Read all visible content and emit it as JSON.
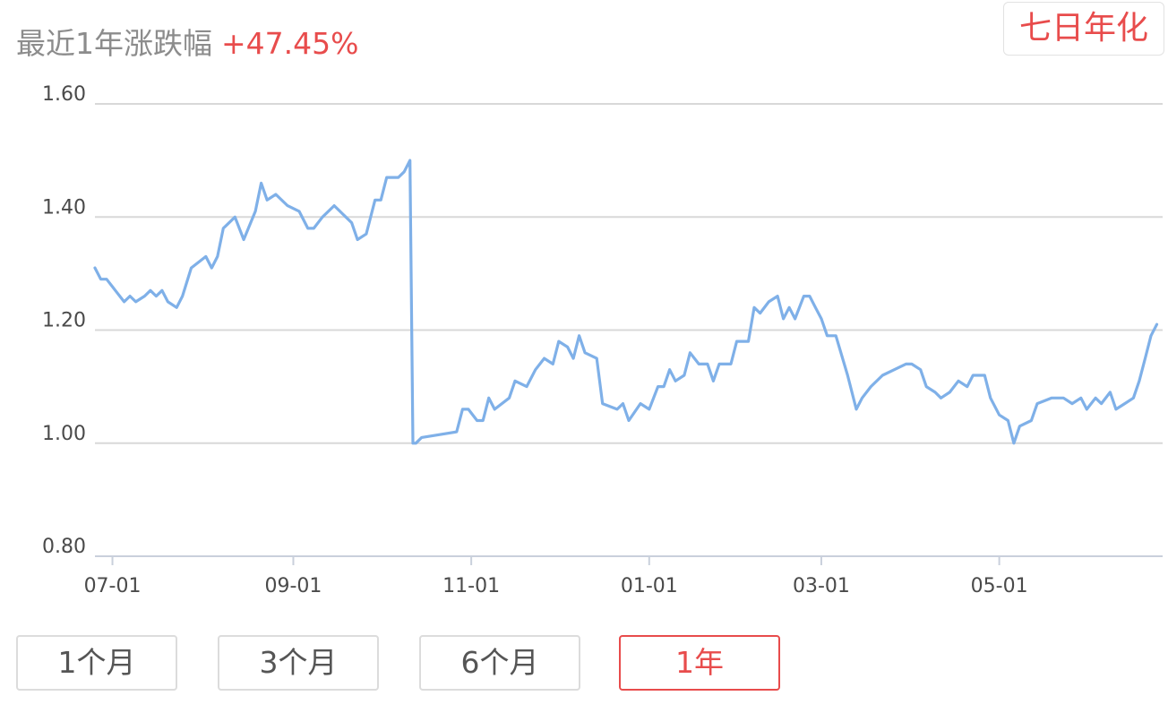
{
  "header": {
    "label": "最近1年涨跌幅",
    "value": "+47.45%"
  },
  "toggle": {
    "label": "七日年化"
  },
  "range_buttons": [
    {
      "label": "1个月",
      "active": false
    },
    {
      "label": "3个月",
      "active": false
    },
    {
      "label": "6个月",
      "active": false
    },
    {
      "label": "1年",
      "active": true
    }
  ],
  "colors": {
    "line": "#7fb0e8",
    "accent": "#e84c4c",
    "grid": "#d8d8d8"
  },
  "chart_data": {
    "type": "line",
    "title": "",
    "xlabel": "",
    "ylabel": "",
    "ylim": [
      0.8,
      1.6
    ],
    "xlim": [
      "2021-06-25",
      "2022-06-26"
    ],
    "y_ticks": [
      "1.60",
      "1.40",
      "1.20",
      "1.00",
      "0.80"
    ],
    "x_ticks": [
      {
        "date": "2021-07-01",
        "label": "07-01"
      },
      {
        "date": "2021-09-01",
        "label": "09-01"
      },
      {
        "date": "2021-11-01",
        "label": "11-01"
      },
      {
        "date": "2022-01-01",
        "label": "01-01"
      },
      {
        "date": "2022-03-01",
        "label": "03-01"
      },
      {
        "date": "2022-05-01",
        "label": "05-01"
      }
    ],
    "grid": true,
    "series": [
      {
        "points": [
          [
            "2021-06-25",
            1.31
          ],
          [
            "2021-06-27",
            1.29
          ],
          [
            "2021-06-29",
            1.29
          ],
          [
            "2021-07-02",
            1.27
          ],
          [
            "2021-07-05",
            1.25
          ],
          [
            "2021-07-07",
            1.26
          ],
          [
            "2021-07-09",
            1.25
          ],
          [
            "2021-07-12",
            1.26
          ],
          [
            "2021-07-14",
            1.27
          ],
          [
            "2021-07-16",
            1.26
          ],
          [
            "2021-07-18",
            1.27
          ],
          [
            "2021-07-20",
            1.25
          ],
          [
            "2021-07-23",
            1.24
          ],
          [
            "2021-07-25",
            1.26
          ],
          [
            "2021-07-28",
            1.31
          ],
          [
            "2021-08-02",
            1.33
          ],
          [
            "2021-08-04",
            1.31
          ],
          [
            "2021-08-06",
            1.33
          ],
          [
            "2021-08-08",
            1.38
          ],
          [
            "2021-08-12",
            1.4
          ],
          [
            "2021-08-15",
            1.36
          ],
          [
            "2021-08-19",
            1.41
          ],
          [
            "2021-08-21",
            1.46
          ],
          [
            "2021-08-23",
            1.43
          ],
          [
            "2021-08-26",
            1.44
          ],
          [
            "2021-08-30",
            1.42
          ],
          [
            "2021-09-03",
            1.41
          ],
          [
            "2021-09-06",
            1.38
          ],
          [
            "2021-09-08",
            1.38
          ],
          [
            "2021-09-11",
            1.4
          ],
          [
            "2021-09-15",
            1.42
          ],
          [
            "2021-09-19",
            1.4
          ],
          [
            "2021-09-21",
            1.39
          ],
          [
            "2021-09-23",
            1.36
          ],
          [
            "2021-09-26",
            1.37
          ],
          [
            "2021-09-29",
            1.43
          ],
          [
            "2021-10-01",
            1.43
          ],
          [
            "2021-10-03",
            1.47
          ],
          [
            "2021-10-05",
            1.47
          ],
          [
            "2021-10-07",
            1.47
          ],
          [
            "2021-10-09",
            1.48
          ],
          [
            "2021-10-11",
            1.5
          ],
          [
            "2021-10-12",
            1.0
          ],
          [
            "2021-10-13",
            1.0
          ],
          [
            "2021-10-15",
            1.01
          ],
          [
            "2021-10-27",
            1.02
          ],
          [
            "2021-10-29",
            1.06
          ],
          [
            "2021-10-31",
            1.06
          ],
          [
            "2021-11-03",
            1.04
          ],
          [
            "2021-11-05",
            1.04
          ],
          [
            "2021-11-07",
            1.08
          ],
          [
            "2021-11-09",
            1.06
          ],
          [
            "2021-11-14",
            1.08
          ],
          [
            "2021-11-16",
            1.11
          ],
          [
            "2021-11-20",
            1.1
          ],
          [
            "2021-11-23",
            1.13
          ],
          [
            "2021-11-26",
            1.15
          ],
          [
            "2021-11-29",
            1.14
          ],
          [
            "2021-12-01",
            1.18
          ],
          [
            "2021-12-04",
            1.17
          ],
          [
            "2021-12-06",
            1.15
          ],
          [
            "2021-12-08",
            1.19
          ],
          [
            "2021-12-10",
            1.16
          ],
          [
            "2021-12-14",
            1.15
          ],
          [
            "2021-12-16",
            1.07
          ],
          [
            "2021-12-21",
            1.06
          ],
          [
            "2021-12-23",
            1.07
          ],
          [
            "2021-12-25",
            1.04
          ],
          [
            "2021-12-29",
            1.07
          ],
          [
            "2022-01-01",
            1.06
          ],
          [
            "2022-01-04",
            1.1
          ],
          [
            "2022-01-06",
            1.1
          ],
          [
            "2022-01-08",
            1.13
          ],
          [
            "2022-01-10",
            1.11
          ],
          [
            "2022-01-13",
            1.12
          ],
          [
            "2022-01-15",
            1.16
          ],
          [
            "2022-01-18",
            1.14
          ],
          [
            "2022-01-21",
            1.14
          ],
          [
            "2022-01-23",
            1.11
          ],
          [
            "2022-01-25",
            1.14
          ],
          [
            "2022-01-29",
            1.14
          ],
          [
            "2022-01-31",
            1.18
          ],
          [
            "2022-02-04",
            1.18
          ],
          [
            "2022-02-06",
            1.24
          ],
          [
            "2022-02-08",
            1.23
          ],
          [
            "2022-02-11",
            1.25
          ],
          [
            "2022-02-14",
            1.26
          ],
          [
            "2022-02-16",
            1.22
          ],
          [
            "2022-02-18",
            1.24
          ],
          [
            "2022-02-20",
            1.22
          ],
          [
            "2022-02-23",
            1.26
          ],
          [
            "2022-02-25",
            1.26
          ],
          [
            "2022-02-27",
            1.24
          ],
          [
            "2022-03-01",
            1.22
          ],
          [
            "2022-03-03",
            1.19
          ],
          [
            "2022-03-06",
            1.19
          ],
          [
            "2022-03-10",
            1.12
          ],
          [
            "2022-03-13",
            1.06
          ],
          [
            "2022-03-15",
            1.08
          ],
          [
            "2022-03-18",
            1.1
          ],
          [
            "2022-03-22",
            1.12
          ],
          [
            "2022-03-26",
            1.13
          ],
          [
            "2022-03-30",
            1.14
          ],
          [
            "2022-04-01",
            1.14
          ],
          [
            "2022-04-04",
            1.13
          ],
          [
            "2022-04-06",
            1.1
          ],
          [
            "2022-04-09",
            1.09
          ],
          [
            "2022-04-11",
            1.08
          ],
          [
            "2022-04-14",
            1.09
          ],
          [
            "2022-04-17",
            1.11
          ],
          [
            "2022-04-20",
            1.1
          ],
          [
            "2022-04-22",
            1.12
          ],
          [
            "2022-04-26",
            1.12
          ],
          [
            "2022-04-28",
            1.08
          ],
          [
            "2022-05-01",
            1.05
          ],
          [
            "2022-05-04",
            1.04
          ],
          [
            "2022-05-06",
            1.0
          ],
          [
            "2022-05-08",
            1.03
          ],
          [
            "2022-05-12",
            1.04
          ],
          [
            "2022-05-14",
            1.07
          ],
          [
            "2022-05-19",
            1.08
          ],
          [
            "2022-05-23",
            1.08
          ],
          [
            "2022-05-26",
            1.07
          ],
          [
            "2022-05-29",
            1.08
          ],
          [
            "2022-05-31",
            1.06
          ],
          [
            "2022-06-03",
            1.08
          ],
          [
            "2022-06-05",
            1.07
          ],
          [
            "2022-06-08",
            1.09
          ],
          [
            "2022-06-10",
            1.06
          ],
          [
            "2022-06-13",
            1.07
          ],
          [
            "2022-06-16",
            1.08
          ],
          [
            "2022-06-18",
            1.11
          ],
          [
            "2022-06-20",
            1.15
          ],
          [
            "2022-06-22",
            1.19
          ],
          [
            "2022-06-24",
            1.21
          ]
        ]
      }
    ]
  }
}
